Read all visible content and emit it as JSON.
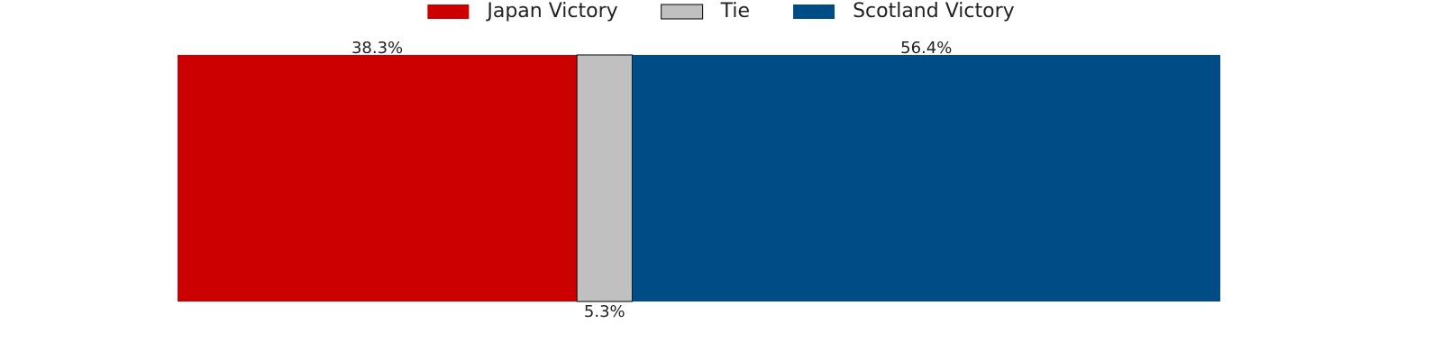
{
  "chart_data": {
    "type": "bar",
    "orientation": "horizontal",
    "stacked": true,
    "xlim": [
      0,
      100
    ],
    "series": [
      {
        "name": "Japan Victory",
        "color": "#cc0000",
        "values": [
          38.3
        ],
        "value_labels": [
          "38.3%"
        ]
      },
      {
        "name": "Tie",
        "color": "#c0c0c0",
        "values": [
          5.3
        ],
        "value_labels": [
          "5.3%"
        ]
      },
      {
        "name": "Scotland Victory",
        "color": "#004c87",
        "values": [
          56.4
        ],
        "value_labels": [
          "56.4%"
        ]
      }
    ],
    "legend": "top"
  }
}
